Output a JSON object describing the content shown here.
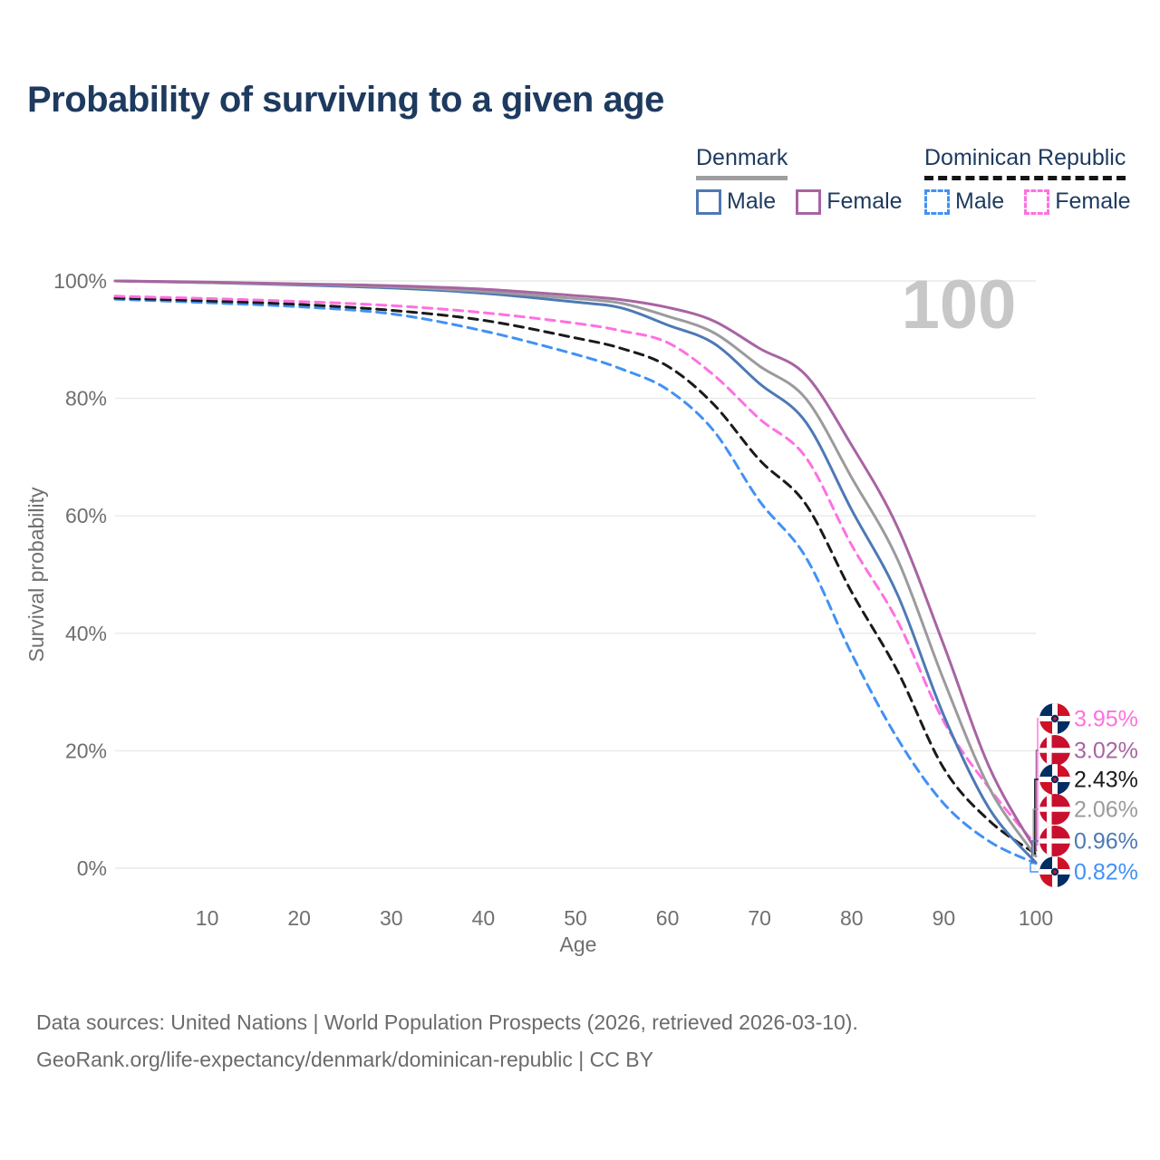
{
  "title": "Probability of surviving to a given age",
  "legend": {
    "groups": [
      {
        "label": "Denmark",
        "line_style": "solid",
        "underline_color": "#9e9ea0",
        "items": [
          {
            "label": "Male",
            "color": "#4d79b5"
          },
          {
            "label": "Female",
            "color": "#a864a2"
          }
        ]
      },
      {
        "label": "Dominican Republic",
        "line_style": "dashed",
        "underline_color": "#151515",
        "items": [
          {
            "label": "Male",
            "color": "#4191f5"
          },
          {
            "label": "Female",
            "color": "#ff70e1"
          }
        ]
      }
    ]
  },
  "chart_data": {
    "type": "line",
    "title": "Probability of surviving to a given age",
    "xlabel": "Age",
    "ylabel": "Survival probability",
    "xlim": [
      0,
      100
    ],
    "ylim": [
      0,
      100
    ],
    "x_ticks": [
      10,
      20,
      30,
      40,
      50,
      60,
      70,
      80,
      90,
      100
    ],
    "y_ticks": [
      {
        "v": 0,
        "label": "0%"
      },
      {
        "v": 20,
        "label": "20%"
      },
      {
        "v": 40,
        "label": "40%"
      },
      {
        "v": 60,
        "label": "60%"
      },
      {
        "v": 80,
        "label": "80%"
      },
      {
        "v": 100,
        "label": "100%"
      }
    ],
    "grid": "horizontal",
    "watermark": "100",
    "x": [
      0,
      10,
      20,
      30,
      40,
      50,
      55,
      60,
      65,
      70,
      75,
      80,
      85,
      90,
      95,
      100
    ],
    "series": [
      {
        "name": "Dominican Republic Male",
        "country": "Dominican Republic",
        "flag": "dominican-republic",
        "dash": "dashed",
        "color": "#4191f5",
        "values": [
          96.9,
          96.3,
          95.6,
          94.4,
          91.5,
          87.5,
          85,
          81.5,
          74.5,
          62.5,
          53,
          36.5,
          22,
          11,
          4.5,
          0.82
        ],
        "end_label": "0.82%"
      },
      {
        "name": "Dominican Republic Both sexes",
        "country": "Dominican Republic",
        "flag": "dominican-republic",
        "dash": "dashed",
        "color": "#1a1a1a",
        "values": [
          97.1,
          96.6,
          96.0,
          95.0,
          93.3,
          90.3,
          88.5,
          85.5,
          79,
          69.5,
          62,
          47,
          33.5,
          17,
          8,
          2.43
        ],
        "end_label": "2.43%"
      },
      {
        "name": "Dominican Republic Female",
        "country": "Dominican Republic",
        "flag": "dominican-republic",
        "dash": "dashed",
        "color": "#ff70e1",
        "values": [
          97.4,
          97.0,
          96.5,
          95.8,
          94.6,
          92.8,
          91.5,
          89.5,
          84,
          76.5,
          70,
          55,
          42,
          25,
          13.5,
          3.95
        ],
        "end_label": "3.95%"
      },
      {
        "name": "Denmark Male",
        "country": "Denmark",
        "flag": "denmark",
        "dash": "solid",
        "color": "#4d79b5",
        "values": [
          100,
          99.7,
          99.3,
          98.8,
          97.9,
          96.4,
          95.4,
          92.5,
          89.4,
          82.5,
          76,
          61,
          46.5,
          26,
          10,
          0.96
        ],
        "end_label": "0.96%"
      },
      {
        "name": "Denmark Both sexes",
        "country": "Denmark",
        "flag": "denmark",
        "dash": "solid",
        "color": "#9b9b9d",
        "values": [
          100,
          99.7,
          99.4,
          99.0,
          98.2,
          97.0,
          96.2,
          94.0,
          91.2,
          85.5,
          80,
          66.5,
          52.5,
          32,
          13.5,
          2.06
        ],
        "end_label": "2.06%"
      },
      {
        "name": "Denmark Female",
        "country": "Denmark",
        "flag": "denmark",
        "dash": "solid",
        "color": "#a864a2",
        "values": [
          100,
          99.8,
          99.5,
          99.2,
          98.6,
          97.5,
          96.8,
          95.5,
          93.2,
          88.5,
          84,
          72,
          58,
          38,
          17,
          3.02
        ],
        "end_label": "3.02%"
      }
    ]
  },
  "footer": {
    "line1": "Data sources: United Nations | World Population Prospects (2026, retrieved 2026-03-10).",
    "line2": "GeoRank.org/life-expectancy/denmark/dominican-republic | CC BY"
  },
  "colors": {
    "title_text": "#1e3a5f",
    "axis_text": "#6f6f6f",
    "gridline": "#e9e9e9",
    "watermark": "#c7c7c7",
    "footer_text": "#6b6b6b",
    "flag_denmark_red": "#c8102e",
    "flag_dr_blue": "#002d62",
    "flag_dr_red": "#ce1126"
  }
}
